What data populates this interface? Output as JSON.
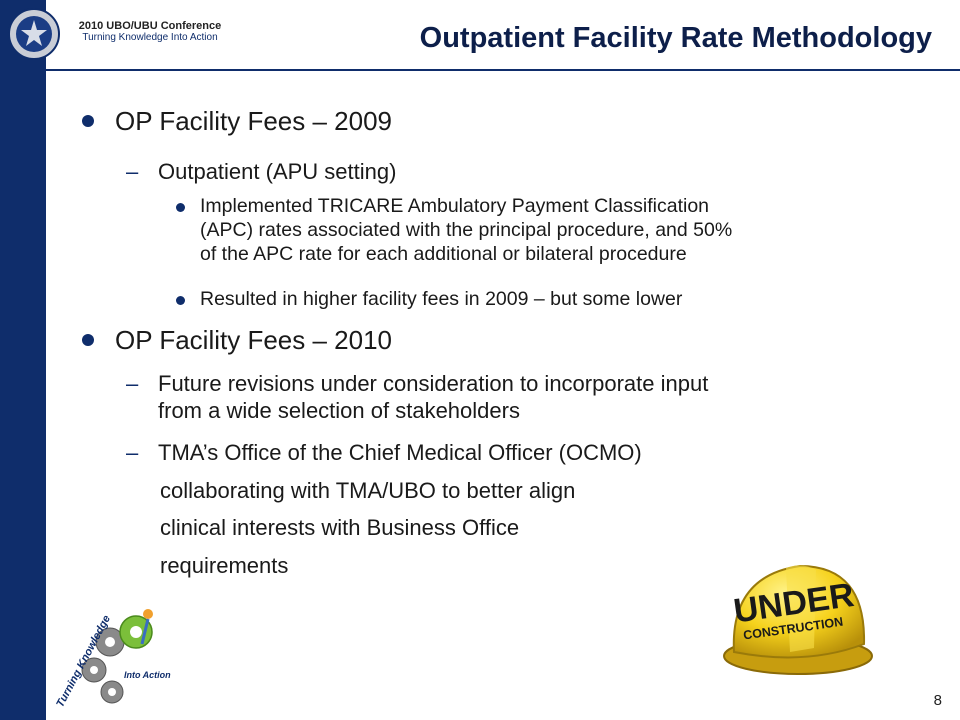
{
  "header": {
    "conference_name": "2010 UBO/UBU Conference",
    "conference_tagline": "Turning Knowledge Into Action",
    "title": "Outpatient Facility Rate Methodology"
  },
  "content": {
    "b1": "OP Facility Fees – 2009",
    "b1_s1": "Outpatient (APU setting)",
    "b1_s1_i1": [
      "Implemented TRICARE Ambulatory Payment Classification",
      "(APC) rates associated with the principal procedure, and 50%",
      "of the APC rate for each additional or bilateral procedure"
    ],
    "b1_s1_i2": "Resulted in higher facility fees in 2009 – but some lower",
    "b2": "OP Facility Fees – 2010",
    "b2_s1": [
      "Future revisions under consideration to incorporate input",
      "from a wide selection of stakeholders"
    ],
    "b2_s2": "TMA’s Office of the Chief Medical Officer (OCMO)",
    "b2_s2_cont": [
      "collaborating with TMA/UBO to better align",
      "clinical interests with Business Office",
      "requirements"
    ]
  },
  "images": {
    "hat_text_1": "UNDER",
    "hat_text_2": "CONSTRUCTION",
    "logo_text_1": "Turning Knowledge",
    "logo_text_2": "Into Action"
  },
  "footer": {
    "page_number": "8"
  }
}
